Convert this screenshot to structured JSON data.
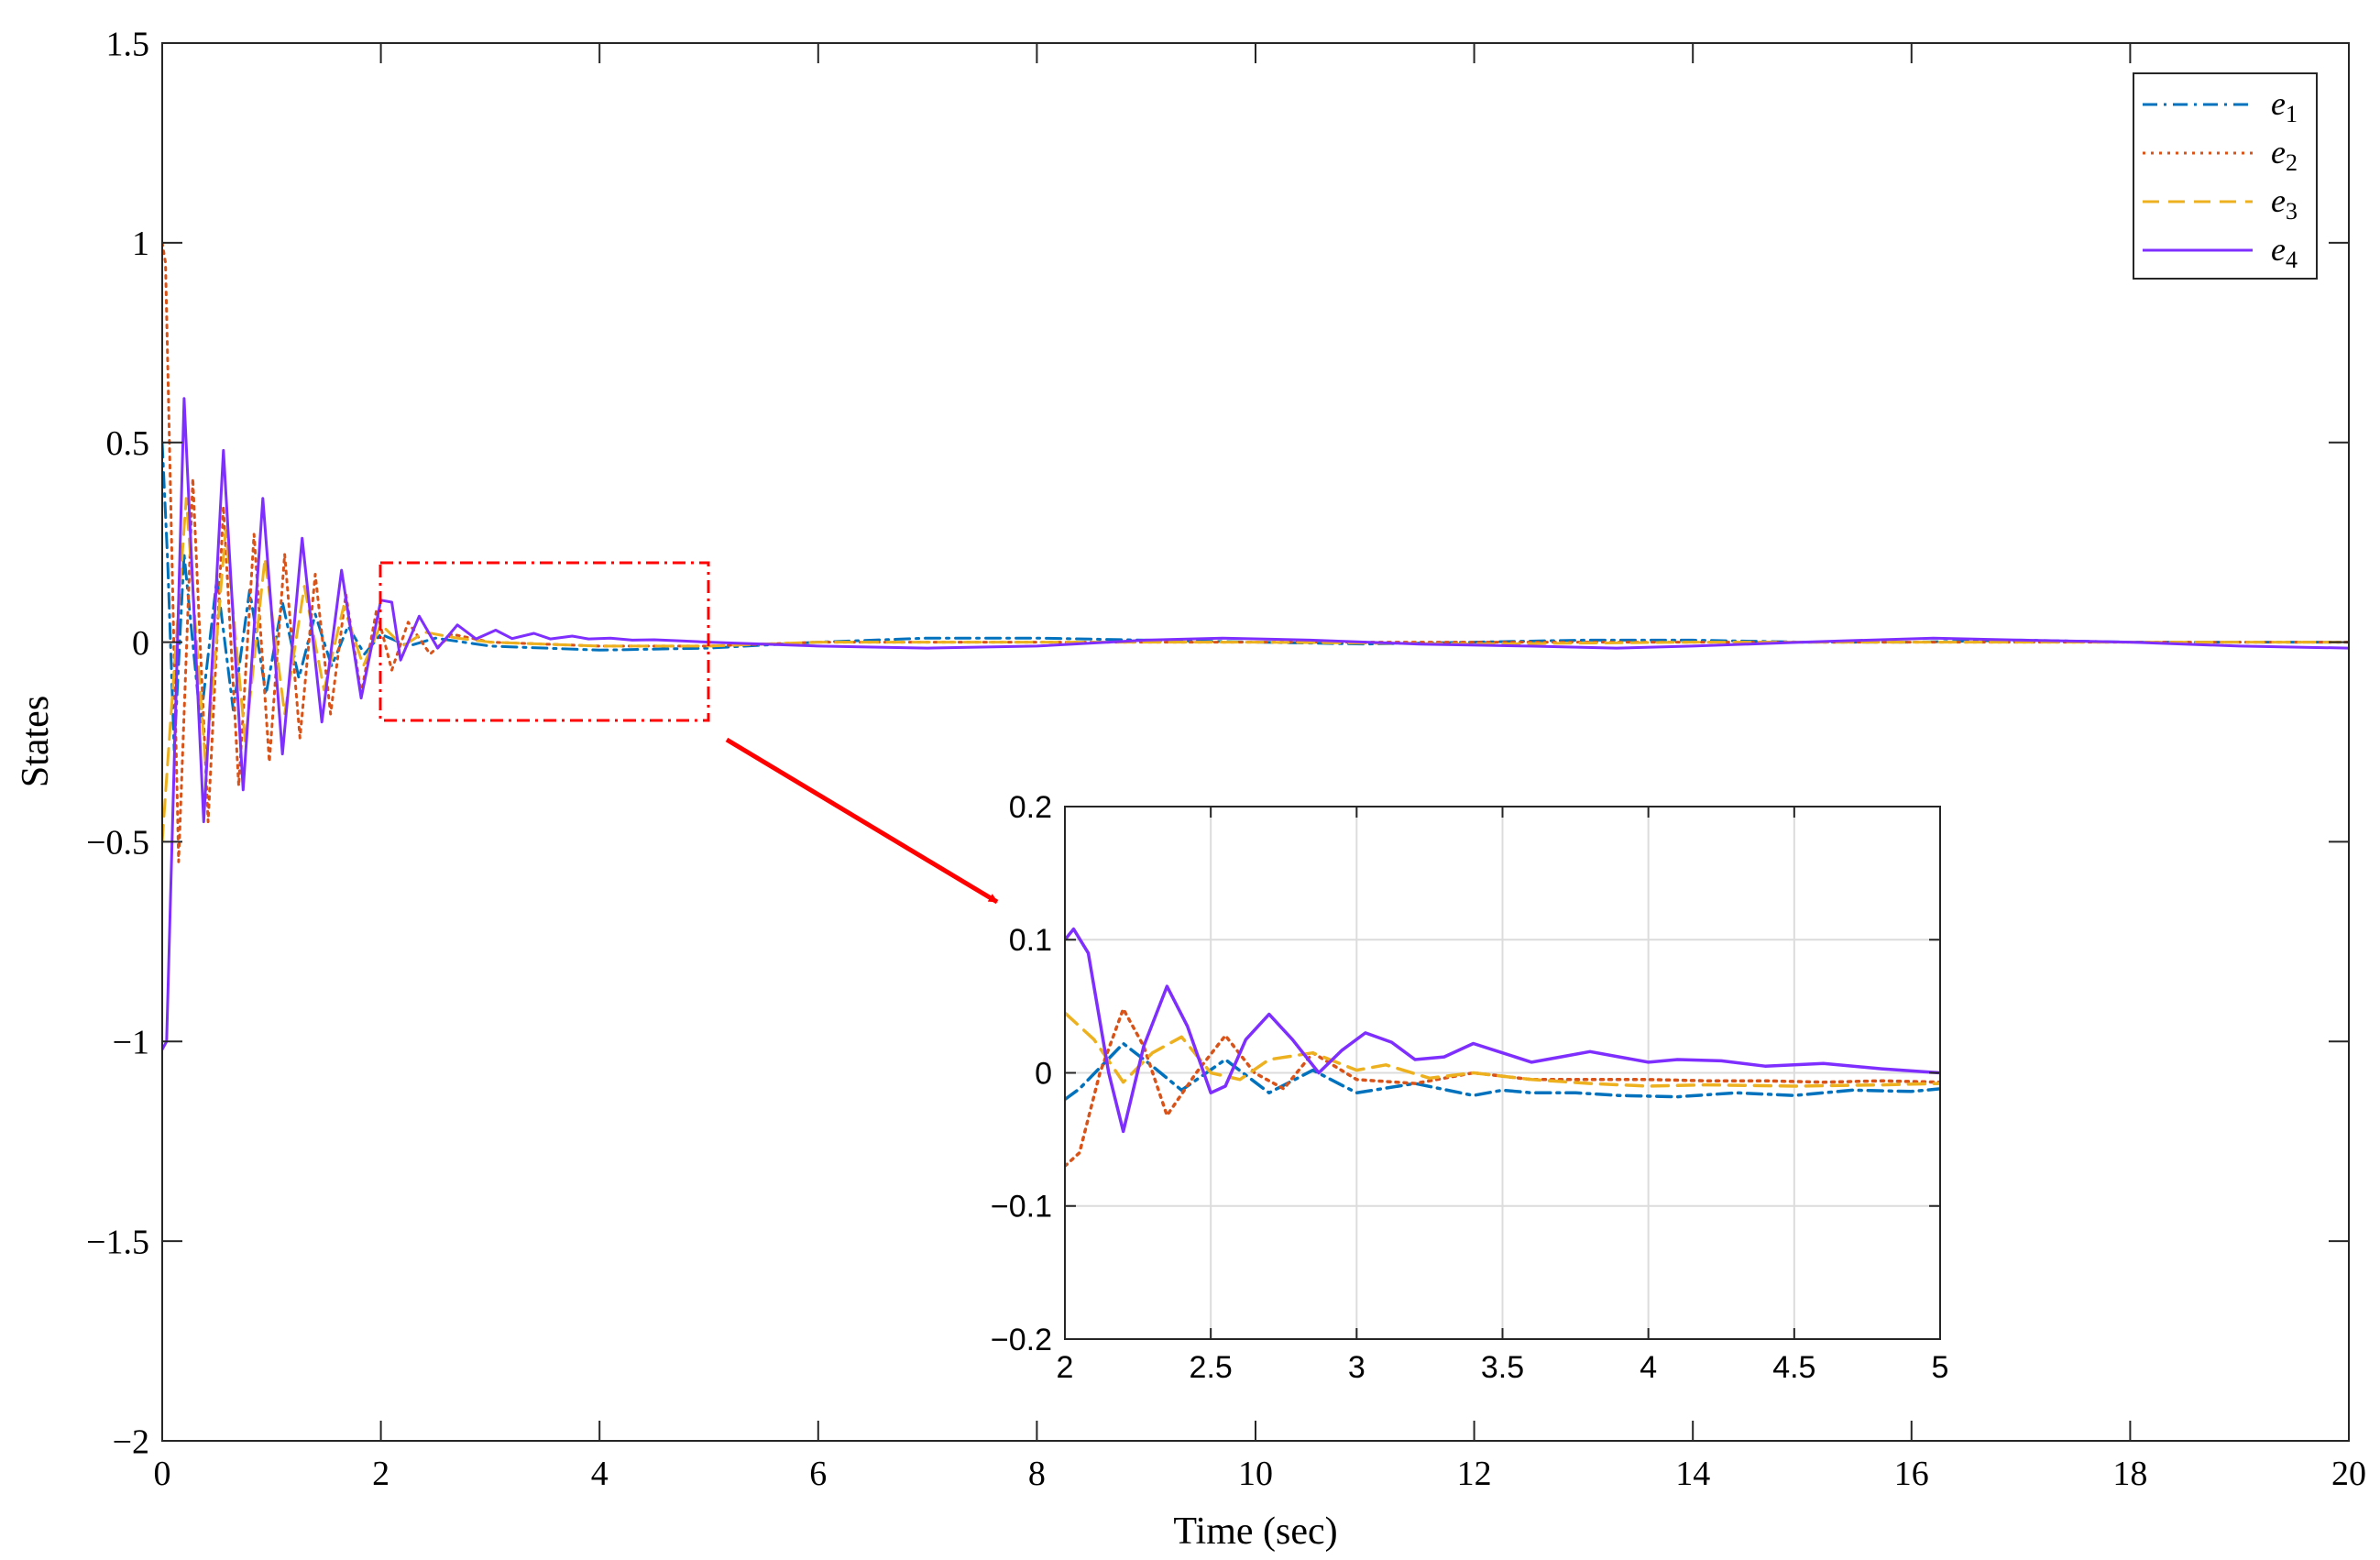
{
  "chart_data": [
    {
      "type": "line",
      "title": "",
      "xlabel": "Time (sec)",
      "ylabel": "States",
      "xlim": [
        0,
        20
      ],
      "ylim": [
        -2,
        1.5
      ],
      "xticks": [
        0,
        2,
        4,
        6,
        8,
        10,
        12,
        14,
        16,
        18,
        20
      ],
      "xtick_labels": [
        "0",
        "2",
        "4",
        "6",
        "8",
        "10",
        "12",
        "14",
        "16",
        "18",
        "20"
      ],
      "yticks": [
        1.5,
        1,
        0.5,
        0,
        -0.5,
        -1,
        -1.5,
        -2
      ],
      "ytick_labels": [
        "1.5",
        "1",
        "0.5",
        "0",
        "−0.5",
        "−1",
        "−1.5",
        "−2"
      ],
      "grid": false,
      "legend_position": "top-right",
      "series": [
        {
          "name": "e1",
          "legend_main": "e",
          "legend_sub": "1",
          "color": "#0072BD",
          "dash": "dashdot",
          "x": [
            0,
            0.05,
            0.11,
            0.2,
            0.35,
            0.5,
            0.65,
            0.8,
            0.95,
            1.1,
            1.25,
            1.4,
            1.55,
            1.7,
            1.85,
            2.0,
            2.25,
            2.5,
            3.0,
            4.0,
            5.0,
            6.0,
            7.0,
            8.0,
            9.0,
            10.0,
            11.0,
            12.0,
            13.0,
            14.0,
            15.0,
            16.0,
            17.0,
            18.0,
            19.0,
            20.0
          ],
          "y": [
            0.5,
            0.2,
            -0.27,
            0.22,
            -0.2,
            0.16,
            -0.17,
            0.13,
            -0.13,
            0.1,
            -0.09,
            0.07,
            -0.06,
            0.04,
            -0.03,
            0.02,
            -0.01,
            0.01,
            -0.01,
            -0.02,
            -0.015,
            0.0,
            0.01,
            0.01,
            0.005,
            0.0,
            -0.005,
            0.0,
            0.005,
            0.005,
            0.0,
            0.0,
            0.005,
            0.0,
            0.0,
            0.0
          ]
        },
        {
          "name": "e2",
          "legend_main": "e",
          "legend_sub": "2",
          "color": "#D95319",
          "dash": "dotted",
          "x": [
            0,
            0.03,
            0.15,
            0.28,
            0.42,
            0.56,
            0.7,
            0.84,
            0.98,
            1.12,
            1.26,
            1.4,
            1.54,
            1.68,
            1.82,
            1.96,
            2.1,
            2.25,
            2.45,
            2.65,
            3.0,
            4.0,
            5.0,
            6.0,
            8.0,
            10.0,
            12.0,
            14.0,
            16.0,
            18.0,
            20.0
          ],
          "y": [
            1.0,
            0.95,
            -0.55,
            0.41,
            -0.45,
            0.34,
            -0.36,
            0.27,
            -0.3,
            0.22,
            -0.24,
            0.17,
            -0.18,
            0.12,
            -0.13,
            0.08,
            -0.07,
            0.05,
            -0.03,
            0.02,
            0.0,
            -0.01,
            -0.01,
            0.0,
            0.0,
            0.0,
            0.0,
            0.0,
            0.0,
            0.0,
            0.0
          ]
        },
        {
          "name": "e3",
          "legend_main": "e",
          "legend_sub": "3",
          "color": "#EDB120",
          "dash": "dashed",
          "x": [
            0,
            0.05,
            0.22,
            0.4,
            0.58,
            0.76,
            0.94,
            1.12,
            1.3,
            1.48,
            1.66,
            1.84,
            2.0,
            2.2,
            2.4,
            2.7,
            3.0,
            4.0,
            5.0,
            6.0,
            8.0,
            10.0,
            12.0,
            14.0,
            16.0,
            18.0,
            20.0
          ],
          "y": [
            -0.5,
            -0.3,
            0.36,
            -0.32,
            0.28,
            -0.25,
            0.21,
            -0.18,
            0.14,
            -0.12,
            0.09,
            -0.06,
            0.045,
            -0.01,
            0.025,
            0.01,
            0.0,
            -0.01,
            -0.01,
            0.0,
            0.0,
            0.0,
            -0.005,
            0.0,
            0.0,
            0.0,
            0.0
          ]
        },
        {
          "name": "e4",
          "legend_main": "e",
          "legend_sub": "4",
          "color": "#7E2FFF",
          "dash": "solid",
          "x": [
            0,
            0.04,
            0.2,
            0.38,
            0.56,
            0.74,
            0.92,
            1.1,
            1.28,
            1.46,
            1.64,
            1.82,
            2.0,
            2.1,
            2.18,
            2.35,
            2.52,
            2.7,
            2.87,
            3.05,
            3.2,
            3.4,
            3.55,
            3.75,
            3.9,
            4.1,
            4.3,
            4.5,
            4.75,
            5.0,
            5.5,
            6.0,
            7.0,
            8.0,
            9.0,
            9.7,
            10.5,
            11.5,
            12.5,
            13.3,
            14.0,
            15.0,
            16.2,
            17.0,
            18.0,
            19.0,
            20.0
          ],
          "y": [
            -1.02,
            -1.0,
            0.61,
            -0.45,
            0.48,
            -0.37,
            0.36,
            -0.28,
            0.26,
            -0.2,
            0.18,
            -0.14,
            0.105,
            0.1,
            -0.045,
            0.065,
            -0.015,
            0.043,
            0.008,
            0.03,
            0.009,
            0.022,
            0.008,
            0.015,
            0.008,
            0.01,
            0.005,
            0.006,
            0.003,
            0.0,
            -0.005,
            -0.01,
            -0.015,
            -0.01,
            0.005,
            0.01,
            0.005,
            -0.005,
            -0.01,
            -0.015,
            -0.01,
            0.0,
            0.01,
            0.005,
            0.0,
            -0.01,
            -0.015
          ]
        }
      ]
    },
    {
      "type": "line",
      "title": "",
      "xlim": [
        2,
        5
      ],
      "ylim": [
        -0.2,
        0.2
      ],
      "xticks": [
        2,
        2.5,
        3,
        3.5,
        4,
        4.5,
        5
      ],
      "xtick_labels": [
        "2",
        "2.5",
        "3",
        "3.5",
        "4",
        "4.5",
        "5"
      ],
      "yticks": [
        0.2,
        0.1,
        0,
        -0.1,
        -0.2
      ],
      "ytick_labels": [
        "0.2",
        "0.1",
        "0",
        "−0.1",
        "−0.2"
      ],
      "grid": true,
      "series": [
        {
          "color": "#0072BD",
          "dash": "dashdot",
          "x": [
            2.0,
            2.05,
            2.2,
            2.3,
            2.4,
            2.55,
            2.7,
            2.85,
            3.0,
            3.2,
            3.4,
            3.5,
            3.6,
            3.75,
            3.9,
            4.1,
            4.3,
            4.5,
            4.7,
            4.9,
            5.0
          ],
          "y": [
            -0.02,
            -0.012,
            0.022,
            0.005,
            -0.013,
            0.01,
            -0.015,
            0.002,
            -0.015,
            -0.008,
            -0.017,
            -0.013,
            -0.015,
            -0.015,
            -0.017,
            -0.018,
            -0.015,
            -0.017,
            -0.013,
            -0.014,
            -0.012
          ]
        },
        {
          "color": "#D95319",
          "dash": "dotted",
          "x": [
            2.0,
            2.05,
            2.12,
            2.2,
            2.27,
            2.35,
            2.45,
            2.55,
            2.65,
            2.75,
            2.85,
            3.0,
            3.2,
            3.4,
            3.6,
            3.8,
            4.0,
            4.2,
            4.4,
            4.6,
            4.8,
            5.0
          ],
          "y": [
            -0.07,
            -0.06,
            0.0,
            0.048,
            0.02,
            -0.032,
            0.0,
            0.028,
            0.0,
            -0.012,
            0.015,
            -0.005,
            -0.008,
            0.0,
            -0.005,
            -0.005,
            -0.005,
            -0.006,
            -0.006,
            -0.007,
            -0.006,
            -0.007
          ]
        },
        {
          "color": "#EDB120",
          "dash": "dashed",
          "x": [
            2.0,
            2.1,
            2.2,
            2.3,
            2.4,
            2.5,
            2.6,
            2.7,
            2.85,
            3.0,
            3.1,
            3.25,
            3.4,
            3.6,
            3.8,
            4.0,
            4.2,
            4.5,
            4.8,
            5.0
          ],
          "y": [
            0.045,
            0.025,
            -0.007,
            0.015,
            0.027,
            0.0,
            -0.005,
            0.01,
            0.015,
            0.002,
            0.006,
            -0.004,
            0.0,
            -0.005,
            -0.008,
            -0.01,
            -0.009,
            -0.01,
            -0.009,
            -0.008
          ]
        },
        {
          "color": "#7E2FFF",
          "dash": "solid",
          "x": [
            2.0,
            2.03,
            2.08,
            2.15,
            2.2,
            2.27,
            2.35,
            2.42,
            2.5,
            2.55,
            2.62,
            2.7,
            2.78,
            2.87,
            2.95,
            3.03,
            3.12,
            3.2,
            3.3,
            3.4,
            3.5,
            3.6,
            3.7,
            3.8,
            3.9,
            4.0,
            4.1,
            4.25,
            4.4,
            4.6,
            4.8,
            5.0
          ],
          "y": [
            0.1,
            0.108,
            0.09,
            0.0,
            -0.044,
            0.02,
            0.065,
            0.035,
            -0.015,
            -0.01,
            0.025,
            0.044,
            0.025,
            0.0,
            0.017,
            0.03,
            0.023,
            0.01,
            0.012,
            0.022,
            0.015,
            0.008,
            0.012,
            0.016,
            0.012,
            0.008,
            0.01,
            0.009,
            0.005,
            0.007,
            0.003,
            0.0
          ]
        }
      ]
    }
  ]
}
